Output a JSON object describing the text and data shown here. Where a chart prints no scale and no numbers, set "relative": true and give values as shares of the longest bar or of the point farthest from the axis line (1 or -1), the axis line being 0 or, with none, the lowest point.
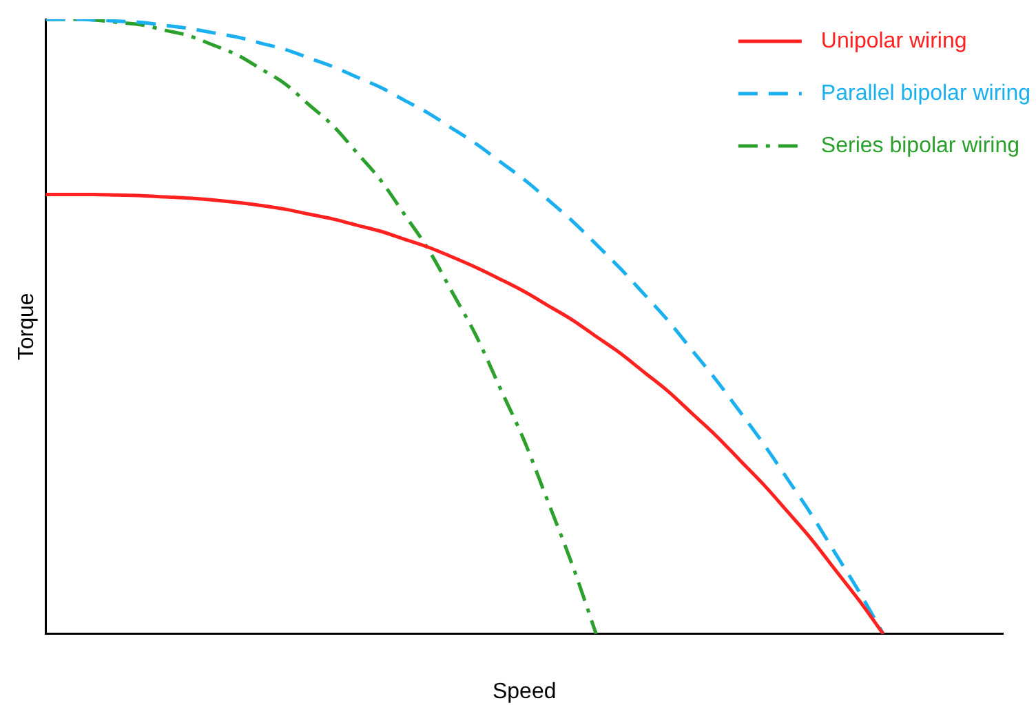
{
  "chart_data": {
    "type": "line",
    "relative": true,
    "xlabel": "Speed",
    "ylabel": "Torque",
    "legend": "top right",
    "marker": "none",
    "grid": false,
    "categories": [
      null,
      null,
      null,
      null,
      null,
      null,
      null,
      null,
      null,
      null,
      null,
      null,
      null,
      null,
      null,
      null,
      null,
      null,
      null,
      null,
      null,
      null,
      null,
      null,
      null,
      null,
      null,
      null,
      null,
      null,
      null,
      null,
      null,
      null,
      null,
      null,
      null,
      null,
      null,
      null,
      null
    ],
    "series": [
      {
        "name": "Unipolar wiring",
        "color": "#ff2020",
        "line_style": "solid",
        "values": [
          0.715,
          0.715,
          0.715,
          0.714,
          0.713,
          0.711,
          0.709,
          0.706,
          0.702,
          0.697,
          0.691,
          0.683,
          0.675,
          0.665,
          0.655,
          0.642,
          0.629,
          0.613,
          0.596,
          0.577,
          0.557,
          0.534,
          0.511,
          0.484,
          0.457,
          0.426,
          0.395,
          0.359,
          0.323,
          0.283,
          0.243,
          0.199,
          0.154,
          0.104,
          0.054,
          0,
          null,
          null,
          null,
          null,
          null
        ]
      },
      {
        "name": "Parallel bipolar wiring",
        "color": "#1ab0f0",
        "line_style": "dashed",
        "values": [
          1,
          1,
          0.999,
          0.997,
          0.995,
          0.99,
          0.985,
          0.978,
          0.971,
          0.961,
          0.951,
          0.937,
          0.923,
          0.906,
          0.889,
          0.868,
          0.847,
          0.822,
          0.797,
          0.768,
          0.739,
          0.706,
          0.672,
          0.634,
          0.595,
          0.553,
          0.51,
          0.462,
          0.414,
          0.362,
          0.309,
          0.252,
          0.194,
          0.131,
          0.068,
          0,
          null,
          null,
          null,
          null,
          null
        ]
      },
      {
        "name": "Series bipolar wiring",
        "color": "#2ca02c",
        "line_style": "dashdot",
        "values": [
          1,
          1,
          0.999,
          0.995,
          0.991,
          0.982,
          0.973,
          0.958,
          0.942,
          0.919,
          0.895,
          0.861,
          0.827,
          0.783,
          0.738,
          0.682,
          0.625,
          0.555,
          0.484,
          0.399,
          0.314,
          0.214,
          0.113,
          0,
          null,
          null,
          null,
          null,
          null,
          null,
          null,
          null,
          null,
          null,
          null,
          null,
          null,
          null,
          null,
          null,
          null
        ]
      }
    ]
  }
}
